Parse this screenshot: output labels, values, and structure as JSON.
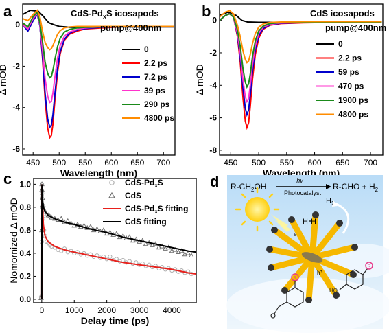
{
  "panels": [
    {
      "letter": "a",
      "type": "line",
      "title_line1_prefix": "CdS-Pd",
      "title_line1_sub": "x",
      "title_line1_suffix": "S icosapods",
      "title_line2": "pump@400nm",
      "xlabel": "Wavelength (nm)",
      "ylabel": "Δ mOD",
      "xlim": [
        430,
        722
      ],
      "ylim": [
        -6.3,
        1.0
      ],
      "xticks": [
        450,
        500,
        550,
        600,
        650,
        700
      ],
      "yticks": [
        0,
        -2,
        -4,
        -6
      ],
      "legend_placement": "right",
      "series": [
        {
          "name": "0",
          "color": "#000000",
          "x": [
            430,
            445,
            460,
            470,
            480,
            490,
            500,
            520,
            550,
            600,
            650,
            700,
            720
          ],
          "y": [
            0.5,
            0.7,
            0.65,
            0.4,
            0.1,
            0.0,
            -0.08,
            -0.12,
            -0.12,
            -0.1,
            -0.08,
            -0.08,
            -0.08
          ]
        },
        {
          "name": "2.2 ps",
          "color": "#ff0000",
          "x": [
            430,
            440,
            450,
            458,
            463,
            468,
            473,
            478,
            482,
            485,
            488,
            492,
            497,
            502,
            510,
            520,
            535,
            550,
            580,
            620,
            660,
            700,
            720
          ],
          "y": [
            0.1,
            -0.3,
            0.2,
            0.5,
            0.0,
            -1.6,
            -3.6,
            -5.0,
            -5.45,
            -5.35,
            -4.8,
            -3.6,
            -2.3,
            -1.4,
            -0.75,
            -0.45,
            -0.3,
            -0.2,
            -0.15,
            -0.1,
            -0.1,
            -0.1,
            -0.1
          ]
        },
        {
          "name": "7.2 ps",
          "color": "#0000cc",
          "x": [
            430,
            440,
            450,
            458,
            463,
            468,
            473,
            478,
            482,
            485,
            488,
            492,
            497,
            502,
            510,
            520,
            535,
            550,
            580,
            620,
            660,
            700,
            720
          ],
          "y": [
            0.0,
            -0.3,
            0.2,
            0.5,
            -0.05,
            -1.5,
            -3.3,
            -4.55,
            -4.95,
            -4.85,
            -4.35,
            -3.3,
            -2.1,
            -1.3,
            -0.7,
            -0.4,
            -0.25,
            -0.18,
            -0.12,
            -0.1,
            -0.1,
            -0.1,
            -0.1
          ]
        },
        {
          "name": "39 ps",
          "color": "#ff33cc",
          "x": [
            430,
            440,
            450,
            458,
            463,
            468,
            473,
            478,
            482,
            485,
            488,
            492,
            497,
            502,
            510,
            520,
            535,
            550,
            580,
            620,
            660,
            700,
            720
          ],
          "y": [
            0.0,
            -0.2,
            0.3,
            0.55,
            0.0,
            -1.2,
            -2.6,
            -3.45,
            -3.75,
            -3.7,
            -3.3,
            -2.5,
            -1.6,
            -1.0,
            -0.55,
            -0.35,
            -0.22,
            -0.15,
            -0.1,
            -0.1,
            -0.1,
            -0.1,
            -0.1
          ]
        },
        {
          "name": "290 ps",
          "color": "#1a8a1a",
          "x": [
            430,
            440,
            450,
            458,
            463,
            468,
            473,
            478,
            482,
            485,
            488,
            492,
            497,
            502,
            510,
            520,
            535,
            550,
            580,
            620,
            660,
            700,
            720
          ],
          "y": [
            0.1,
            -0.1,
            0.4,
            0.6,
            0.1,
            -0.8,
            -1.8,
            -2.35,
            -2.55,
            -2.5,
            -2.2,
            -1.65,
            -1.05,
            -0.65,
            -0.35,
            -0.22,
            -0.15,
            -0.12,
            -0.1,
            -0.1,
            -0.1,
            -0.1,
            -0.1
          ]
        },
        {
          "name": "4800 ps",
          "color": "#ff8c00",
          "x": [
            430,
            440,
            450,
            458,
            463,
            468,
            473,
            478,
            482,
            485,
            488,
            492,
            497,
            502,
            510,
            520,
            535,
            550,
            580,
            620,
            660,
            700,
            720
          ],
          "y": [
            0.3,
            0.2,
            0.5,
            0.7,
            0.4,
            -0.3,
            -0.85,
            -1.1,
            -1.2,
            -1.15,
            -1.0,
            -0.75,
            -0.45,
            -0.28,
            -0.15,
            -0.1,
            -0.08,
            -0.08,
            -0.08,
            -0.08,
            -0.08,
            -0.08,
            -0.08
          ]
        }
      ]
    },
    {
      "letter": "b",
      "type": "line",
      "title_line1": "CdS icosapods",
      "title_line2": "pump@400nm",
      "xlabel": "Wavelength (nm)",
      "ylabel": "Δ mOD",
      "xlim": [
        430,
        722
      ],
      "ylim": [
        -8.3,
        1.0
      ],
      "xticks": [
        450,
        500,
        550,
        600,
        650,
        700
      ],
      "yticks": [
        0,
        -2,
        -4,
        -6,
        -8
      ],
      "legend_placement": "right",
      "series": [
        {
          "name": "0",
          "color": "#000000",
          "x": [
            430,
            445,
            460,
            470,
            480,
            500,
            550,
            600,
            650,
            700,
            720
          ],
          "y": [
            0.3,
            0.5,
            0.3,
            0.0,
            -0.1,
            -0.12,
            -0.12,
            -0.1,
            -0.08,
            -0.08,
            -0.08
          ]
        },
        {
          "name": "2.2 ps",
          "color": "#ff0000",
          "x": [
            430,
            440,
            448,
            455,
            462,
            467,
            472,
            476,
            479,
            482,
            485,
            489,
            494,
            500,
            508,
            520,
            540,
            580,
            640,
            700,
            720
          ],
          "y": [
            0.0,
            0.3,
            0.4,
            0.2,
            -1.0,
            -2.6,
            -4.8,
            -6.2,
            -6.6,
            -6.3,
            -5.3,
            -3.6,
            -2.1,
            -1.1,
            -0.55,
            -0.3,
            -0.2,
            -0.15,
            -0.12,
            -0.1,
            -0.1
          ]
        },
        {
          "name": "59 ps",
          "color": "#0000cc",
          "x": [
            430,
            440,
            448,
            455,
            462,
            467,
            472,
            476,
            479,
            482,
            485,
            489,
            494,
            500,
            508,
            520,
            540,
            580,
            640,
            700,
            720
          ],
          "y": [
            0.0,
            0.3,
            0.4,
            0.2,
            -0.9,
            -2.3,
            -4.2,
            -5.4,
            -5.8,
            -5.5,
            -4.6,
            -3.1,
            -1.8,
            -0.95,
            -0.5,
            -0.28,
            -0.18,
            -0.13,
            -0.1,
            -0.1,
            -0.1
          ]
        },
        {
          "name": "470 ps",
          "color": "#ff33cc",
          "x": [
            430,
            440,
            448,
            455,
            462,
            467,
            472,
            476,
            479,
            482,
            485,
            489,
            494,
            500,
            508,
            520,
            540,
            580,
            640,
            700,
            720
          ],
          "y": [
            0.0,
            0.3,
            0.4,
            0.2,
            -0.8,
            -2.0,
            -3.7,
            -4.7,
            -5.0,
            -4.8,
            -4.0,
            -2.7,
            -1.55,
            -0.8,
            -0.42,
            -0.25,
            -0.16,
            -0.12,
            -0.1,
            -0.1,
            -0.1
          ]
        },
        {
          "name": "1900 ps",
          "color": "#1a8a1a",
          "x": [
            430,
            440,
            448,
            455,
            462,
            467,
            472,
            476,
            479,
            482,
            485,
            489,
            494,
            500,
            508,
            520,
            540,
            580,
            640,
            700,
            720
          ],
          "y": [
            0.0,
            0.3,
            0.4,
            0.2,
            -0.6,
            -1.6,
            -3.0,
            -3.8,
            -4.1,
            -3.9,
            -3.3,
            -2.2,
            -1.25,
            -0.65,
            -0.35,
            -0.2,
            -0.14,
            -0.1,
            -0.1,
            -0.1,
            -0.1
          ]
        },
        {
          "name": "4800 ps",
          "color": "#ff8c00",
          "x": [
            430,
            440,
            448,
            455,
            462,
            467,
            472,
            476,
            479,
            482,
            485,
            489,
            494,
            500,
            508,
            520,
            540,
            580,
            640,
            700,
            720
          ],
          "y": [
            0.2,
            0.5,
            0.6,
            0.4,
            -0.3,
            -1.0,
            -1.9,
            -2.4,
            -2.6,
            -2.5,
            -2.1,
            -1.4,
            -0.8,
            -0.42,
            -0.22,
            -0.13,
            -0.1,
            -0.08,
            -0.08,
            -0.08,
            -0.08
          ]
        }
      ]
    },
    {
      "letter": "c",
      "type": "scatter",
      "xlabel": "Delay time (ps)",
      "ylabel": "Nomornized Δ mOD",
      "xlim": [
        -250,
        4750
      ],
      "ylim": [
        -0.03,
        1.05
      ],
      "xticks": [
        0,
        1000,
        2000,
        3000,
        4000
      ],
      "yticks": [
        0.0,
        0.2,
        0.4,
        0.6,
        0.8,
        1.0
      ],
      "legend_placement": "top-right",
      "series": [
        {
          "name_prefix": "CdS-Pd",
          "name_sub": "x",
          "name_suffix": "S",
          "kind": "circles",
          "color": "#b0b0b0",
          "x": [
            -20,
            0,
            2,
            5,
            10,
            20,
            40,
            70,
            100,
            150,
            200,
            250,
            300,
            400,
            500,
            600,
            700,
            800,
            900,
            1000,
            1100,
            1200,
            1300,
            1400,
            1500,
            1600,
            1700,
            1800,
            1900,
            2000,
            2100,
            2200,
            2300,
            2400,
            2500,
            2600,
            2700,
            2800,
            2900,
            3000,
            3100,
            3200,
            3300,
            3400,
            3500,
            3600,
            3700,
            3800,
            3900,
            4000,
            4100,
            4200,
            4300,
            4400,
            4500,
            4600
          ],
          "y": [
            0.02,
            0.5,
            0.9,
            1.0,
            0.92,
            0.8,
            0.7,
            0.6,
            0.55,
            0.5,
            0.49,
            0.47,
            0.46,
            0.45,
            0.43,
            0.42,
            0.44,
            0.41,
            0.42,
            0.4,
            0.41,
            0.39,
            0.4,
            0.38,
            0.39,
            0.37,
            0.38,
            0.36,
            0.37,
            0.35,
            0.37,
            0.34,
            0.35,
            0.33,
            0.34,
            0.32,
            0.33,
            0.31,
            0.32,
            0.3,
            0.31,
            0.29,
            0.3,
            0.28,
            0.29,
            0.27,
            0.28,
            0.26,
            0.27,
            0.25,
            0.26,
            0.24,
            0.25,
            0.23,
            0.24,
            0.22
          ]
        },
        {
          "name": "CdS",
          "kind": "triangles",
          "color": "#707070",
          "x": [
            -20,
            0,
            2,
            5,
            10,
            20,
            40,
            70,
            100,
            150,
            200,
            250,
            300,
            400,
            500,
            600,
            700,
            800,
            900,
            1000,
            1100,
            1200,
            1300,
            1400,
            1500,
            1600,
            1700,
            1800,
            1900,
            2000,
            2100,
            2200,
            2300,
            2400,
            2500,
            2600,
            2700,
            2800,
            2900,
            3000,
            3100,
            3200,
            3300,
            3400,
            3500,
            3600,
            3700,
            3800,
            3900,
            4000,
            4100,
            4200,
            4300,
            4400,
            4500,
            4600
          ],
          "y": [
            0.01,
            0.6,
            0.95,
            1.0,
            0.95,
            0.88,
            0.82,
            0.78,
            0.76,
            0.74,
            0.73,
            0.72,
            0.71,
            0.7,
            0.69,
            0.7,
            0.67,
            0.68,
            0.66,
            0.64,
            0.65,
            0.63,
            0.64,
            0.62,
            0.63,
            0.6,
            0.61,
            0.59,
            0.6,
            0.57,
            0.58,
            0.56,
            0.57,
            0.54,
            0.55,
            0.53,
            0.54,
            0.51,
            0.52,
            0.5,
            0.51,
            0.48,
            0.49,
            0.47,
            0.48,
            0.45,
            0.46,
            0.44,
            0.45,
            0.42,
            0.43,
            0.41,
            0.42,
            0.39,
            0.4,
            0.38
          ]
        },
        {
          "name_prefix": "CdS-Pd",
          "name_sub": "x",
          "name_suffix": "S fitting",
          "kind": "line",
          "color": "#e8201c",
          "x": [
            0,
            5,
            20,
            50,
            100,
            200,
            400,
            700,
            1000,
            1500,
            2000,
            2500,
            3000,
            3500,
            4000,
            4500,
            4750
          ],
          "y": [
            0.0,
            1.0,
            0.85,
            0.65,
            0.55,
            0.5,
            0.46,
            0.43,
            0.41,
            0.38,
            0.35,
            0.32,
            0.3,
            0.28,
            0.26,
            0.23,
            0.22
          ]
        },
        {
          "name": "CdS fitting",
          "kind": "line",
          "color": "#000000",
          "x": [
            0,
            5,
            20,
            50,
            100,
            200,
            400,
            700,
            1000,
            1500,
            2000,
            2500,
            3000,
            3500,
            4000,
            4500,
            4750
          ],
          "y": [
            0.0,
            1.0,
            0.88,
            0.8,
            0.76,
            0.73,
            0.7,
            0.67,
            0.65,
            0.61,
            0.58,
            0.54,
            0.51,
            0.48,
            0.45,
            0.42,
            0.41
          ]
        }
      ]
    }
  ],
  "panel_d": {
    "letter": "d",
    "reactant": "R-CH",
    "reactant_sub": "2",
    "reactant_suffix": "OH",
    "arrow_top": "hv",
    "arrow_bottom": "Photocatalyst",
    "product": "R-CHO + H",
    "product_sub": "2",
    "h2_label": "H",
    "h2_sub": "2",
    "h_left": "H",
    "h_right": "H",
    "r_label": "R",
    "hole_label": "h",
    "hole_sup": "+",
    "electron_label": "e",
    "electron_sup": "-",
    "ho_label": "HO",
    "colors": {
      "sky": "#d9ecfa",
      "sun": "#ffd21a",
      "arm": "#f6b800",
      "tip": "#333333"
    }
  }
}
